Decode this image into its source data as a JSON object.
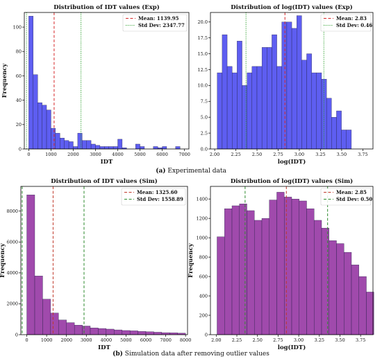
{
  "captions": {
    "a_label": "(a)",
    "a_text": " Experimental data",
    "b_label": "(b)",
    "b_text": " Simulation data after removing outlier values"
  },
  "colors": {
    "exp_bar": "#4c4cf0",
    "sim_bar": "#8f2a9e",
    "bar_edge": "#222244",
    "mean_exp": "#d62728",
    "std_exp": "#2ca02c",
    "mean_sim": "#c0392b",
    "std_sim": "#2e8b2e"
  },
  "chart_data": [
    {
      "type": "bar",
      "title": "Distribution of IDT values (Exp)",
      "xlabel": "IDT",
      "ylabel": "Frequency",
      "xlim": [
        -200,
        7200
      ],
      "ylim": [
        0,
        112
      ],
      "xticks": [
        0,
        1000,
        2000,
        3000,
        4000,
        5000,
        6000,
        7000
      ],
      "yticks": [
        0,
        20,
        40,
        60,
        80,
        100
      ],
      "bin_start": 0,
      "bin_width": 200,
      "values": [
        109,
        61,
        38,
        36,
        32,
        17,
        13,
        9,
        7,
        6,
        2,
        13,
        7,
        7,
        4,
        3,
        2,
        2,
        2,
        2,
        8,
        1,
        0,
        0,
        4,
        2,
        0,
        0,
        2,
        1,
        2,
        0,
        0,
        2,
        0
      ],
      "legend": [
        {
          "name": "Mean: 1139.95",
          "value": 1139.95,
          "style": "dashed"
        },
        {
          "name": "Std Dev: 2347.77",
          "value": 2347.77,
          "style": "dotted"
        }
      ],
      "vlines": [
        {
          "x": 1139.95,
          "style": "mean"
        },
        {
          "x": 2347.77,
          "style": "std"
        },
        {
          "x": -100,
          "style": "std"
        }
      ],
      "legend_position": "top-right",
      "grid": false
    },
    {
      "type": "bar",
      "title": "Distribution of log(IDT) values (Exp)",
      "xlabel": "log(IDT)",
      "ylabel": "",
      "xlim": [
        1.95,
        3.87
      ],
      "ylim": [
        0,
        21.5
      ],
      "xticks": [
        2.0,
        2.25,
        2.5,
        2.75,
        3.0,
        3.25,
        3.5,
        3.75
      ],
      "ytick_labels": [
        "0.0",
        "2.5",
        "5.0",
        "7.5",
        "10.0",
        "12.5",
        "15.0",
        "17.5",
        "20.0"
      ],
      "yticks": [
        0,
        2.5,
        5,
        7.5,
        10,
        12.5,
        15,
        17.5,
        20
      ],
      "bin_start": 2.03,
      "bin_width": 0.0587,
      "values": [
        12,
        18,
        13,
        12,
        17,
        10,
        12,
        13,
        13,
        16,
        16,
        18,
        13,
        20,
        20,
        19,
        21,
        14,
        15,
        12,
        12,
        11,
        8,
        5,
        6,
        3,
        3
      ],
      "legend": [
        {
          "name": "Mean: 2.83",
          "value": 2.83,
          "style": "dashed"
        },
        {
          "name": "Std Dev: 0.46",
          "value": 0.46,
          "style": "dotted"
        }
      ],
      "vlines": [
        {
          "x": 2.83,
          "style": "mean"
        },
        {
          "x": 2.37,
          "style": "std"
        },
        {
          "x": 3.29,
          "style": "std"
        }
      ],
      "legend_position": "top-right",
      "grid": false
    },
    {
      "type": "bar",
      "title": "Distribution of IDT values (Sim)",
      "xlabel": "IDT",
      "ylabel": "Frequency",
      "xlim": [
        -300,
        8100
      ],
      "ylim": [
        0,
        9600
      ],
      "xticks": [
        0,
        1000,
        2000,
        3000,
        4000,
        5000,
        6000,
        7000,
        8000
      ],
      "yticks": [
        0,
        2000,
        4000,
        6000,
        8000
      ],
      "bin_start": 0,
      "bin_width": 400,
      "values": [
        9050,
        3800,
        2300,
        1400,
        950,
        780,
        620,
        560,
        440,
        400,
        360,
        310,
        270,
        250,
        210,
        190,
        160,
        130,
        120,
        100
      ],
      "legend": [
        {
          "name": "Mean: 1325.60",
          "value": 1325.6,
          "style": "dashed"
        },
        {
          "name": "Std Dev: 1558.89",
          "value": 1558.89,
          "style": "dashed"
        }
      ],
      "vlines": [
        {
          "x": 1325.6,
          "style": "mean"
        },
        {
          "x": 2884.5,
          "style": "std"
        },
        {
          "x": -233,
          "style": "std"
        }
      ],
      "legend_position": "top-right",
      "grid": false
    },
    {
      "type": "bar",
      "title": "Distribution of log(IDT) values (Sim)",
      "xlabel": "log(IDT)",
      "ylabel": "Frequency",
      "xlim": [
        1.93,
        3.9
      ],
      "ylim": [
        0,
        1530
      ],
      "xticks": [
        2.0,
        2.25,
        2.5,
        2.75,
        3.0,
        3.25,
        3.5,
        3.75
      ],
      "yticks": [
        0,
        200,
        400,
        600,
        800,
        1000,
        1200,
        1400
      ],
      "bin_start": 2.01,
      "bin_width": 0.0905,
      "values": [
        1010,
        1300,
        1330,
        1350,
        1280,
        1180,
        1200,
        1390,
        1470,
        1420,
        1400,
        1380,
        1300,
        1180,
        1100,
        970,
        940,
        850,
        720,
        600,
        440
      ],
      "legend": [
        {
          "name": "Mean: 2.85",
          "value": 2.85,
          "style": "dashed"
        },
        {
          "name": "Std Dev: 0.50",
          "value": 0.5,
          "style": "dashed"
        }
      ],
      "vlines": [
        {
          "x": 2.85,
          "style": "mean"
        },
        {
          "x": 2.35,
          "style": "std"
        },
        {
          "x": 3.35,
          "style": "std"
        }
      ],
      "legend_position": "top-right",
      "grid": false
    }
  ]
}
